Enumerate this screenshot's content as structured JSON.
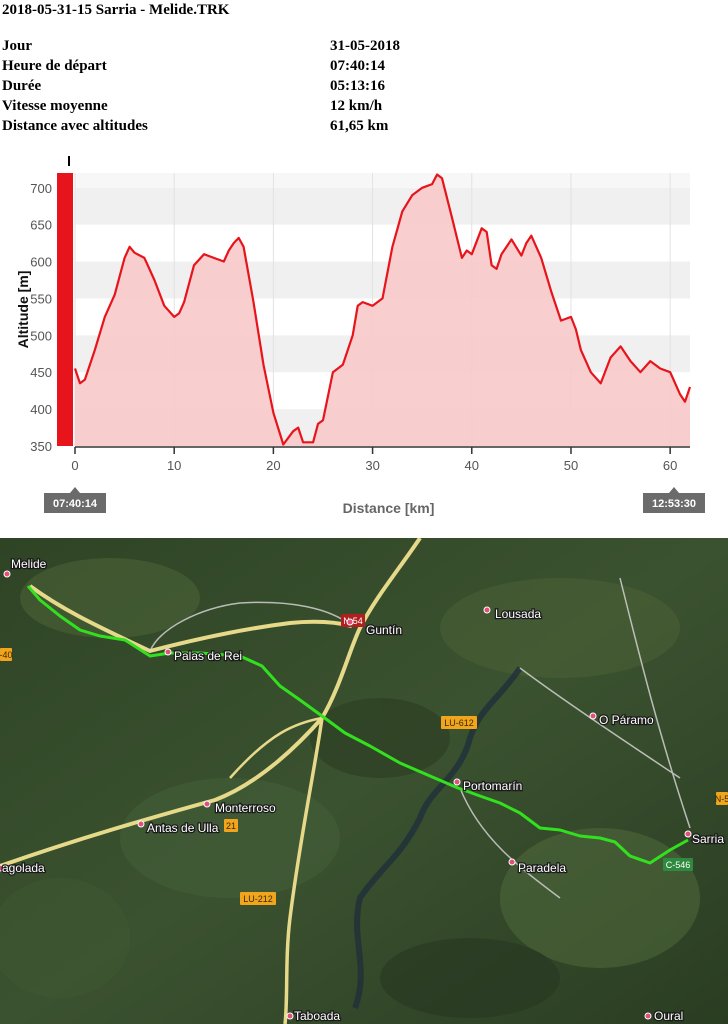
{
  "header": {
    "title": "2018-05-31-15 Sarria - Melide.TRK"
  },
  "summary": [
    {
      "label": "Jour",
      "value": "31-05-2018"
    },
    {
      "label": "Heure de départ",
      "value": "07:40:14"
    },
    {
      "label": "Durée",
      "value": "05:13:16"
    },
    {
      "label": "Vitesse moyenne",
      "value": "12 km/h"
    },
    {
      "label": "Distance avec altitudes",
      "value": "61,65 km"
    }
  ],
  "chart_data": {
    "type": "area",
    "xlabel": "Distance [km]",
    "ylabel": "Altitude [m]",
    "xlim": [
      0,
      62
    ],
    "ylim": [
      350,
      720
    ],
    "xticks": [
      0,
      10,
      20,
      30,
      40,
      50,
      60
    ],
    "yticks": [
      350,
      400,
      450,
      500,
      550,
      600,
      650,
      700
    ],
    "start_label": "07:40:14",
    "end_label": "12:53:30",
    "series_color": "#e8141c",
    "fill_color": "#f7c9c9",
    "x": [
      0,
      0.5,
      1,
      2,
      3,
      4,
      5,
      5.5,
      6,
      7,
      8,
      9,
      10,
      10.5,
      11,
      12,
      13,
      14,
      15,
      15.5,
      16,
      16.5,
      17,
      18,
      19,
      20,
      21,
      22,
      22.5,
      23,
      24,
      24.5,
      25,
      26,
      27,
      28,
      28.5,
      29,
      30,
      31,
      32,
      33,
      34,
      35,
      36,
      36.5,
      37,
      38,
      39,
      39.5,
      40,
      41,
      41.5,
      42,
      42.5,
      43,
      44,
      45,
      45.5,
      46,
      47,
      48,
      49,
      50,
      50.5,
      51,
      52,
      53,
      54,
      55,
      56,
      57,
      58,
      59,
      60,
      61,
      61.5,
      62
    ],
    "y": [
      455,
      435,
      440,
      480,
      525,
      555,
      605,
      620,
      612,
      605,
      575,
      540,
      525,
      530,
      545,
      595,
      610,
      605,
      600,
      615,
      625,
      632,
      620,
      545,
      460,
      395,
      352,
      370,
      375,
      355,
      355,
      380,
      385,
      450,
      460,
      500,
      540,
      545,
      540,
      550,
      620,
      668,
      690,
      700,
      705,
      718,
      713,
      660,
      605,
      615,
      610,
      645,
      640,
      595,
      590,
      610,
      630,
      608,
      625,
      635,
      605,
      560,
      520,
      525,
      508,
      480,
      450,
      435,
      470,
      485,
      465,
      450,
      465,
      455,
      450,
      420,
      410,
      430
    ]
  },
  "map": {
    "places": [
      {
        "name": "Melide"
      },
      {
        "name": "Guntín"
      },
      {
        "name": "Lousada"
      },
      {
        "name": "Palas de Rei"
      },
      {
        "name": "O Páramo"
      },
      {
        "name": "Portomarín"
      },
      {
        "name": "Monterroso"
      },
      {
        "name": "Antas de Ulla"
      },
      {
        "name": "Sarria"
      },
      {
        "name": "Paradela"
      },
      {
        "name": "agolada"
      },
      {
        "name": "Taboada"
      },
      {
        "name": "Oural"
      }
    ],
    "road_labels": [
      {
        "text": "N-54"
      },
      {
        "text": "LU-612"
      },
      {
        "text": "N-5"
      },
      {
        "text": "LU-212"
      },
      {
        "text": "C-546"
      },
      {
        "text": "21"
      },
      {
        "text": "-40"
      }
    ]
  }
}
